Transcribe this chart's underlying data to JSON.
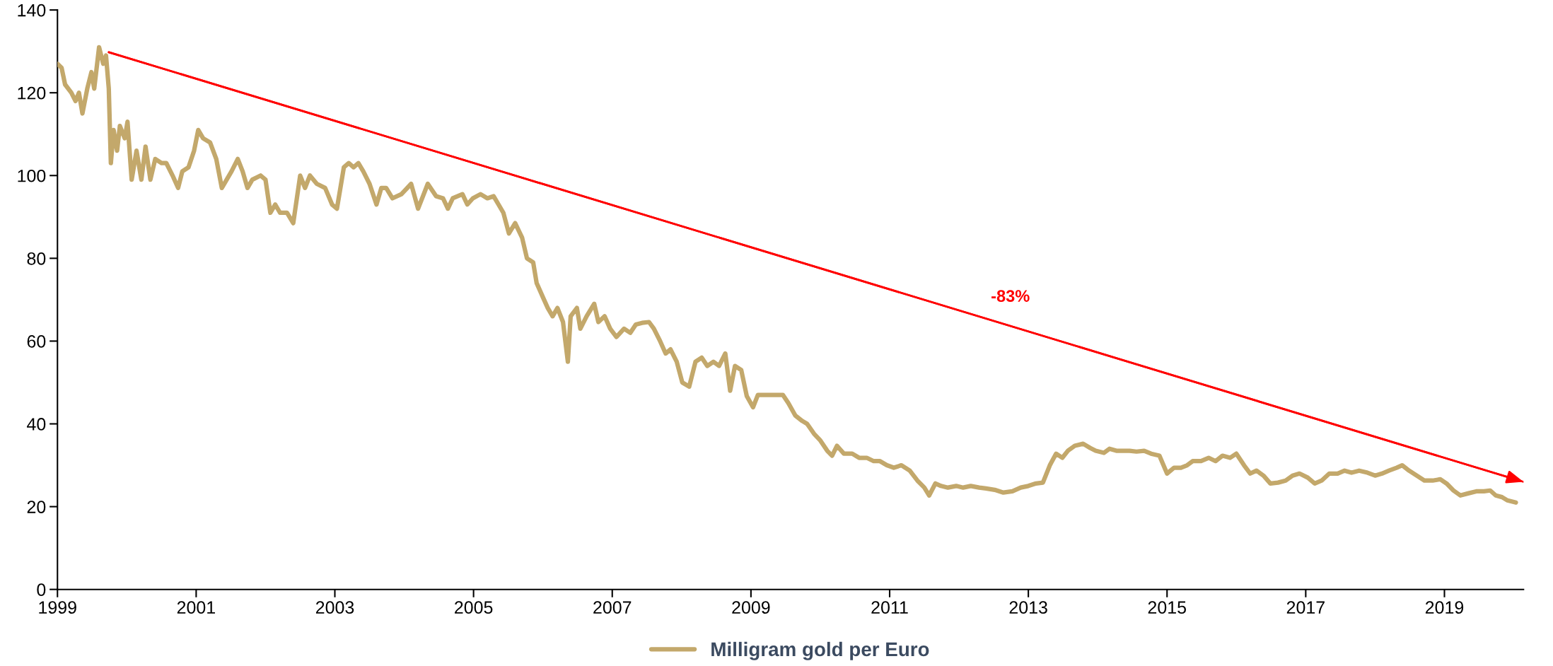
{
  "chart_data": {
    "type": "line",
    "xlim": [
      1999,
      2020.14
    ],
    "xticks": [
      1999,
      2001,
      2003,
      2005,
      2007,
      2009,
      2011,
      2013,
      2015,
      2017,
      2019
    ],
    "ylim": [
      0,
      140
    ],
    "yticks": [
      0,
      20,
      40,
      60,
      80,
      100,
      120,
      140
    ],
    "grid": false,
    "legend": "bottom",
    "line_style": "solid",
    "marker": "none",
    "annotations": [
      "-83%"
    ],
    "series": [
      {
        "name": "Milligram gold per Euro",
        "color": "#c3a86b",
        "x": [
          1999.0,
          1999.06,
          1999.11,
          1999.2,
          1999.26,
          1999.31,
          1999.36,
          1999.43,
          1999.49,
          1999.53,
          1999.6,
          1999.66,
          1999.7,
          1999.74,
          1999.77,
          1999.81,
          1999.86,
          1999.9,
          1999.97,
          2000.01,
          2000.07,
          2000.14,
          2000.21,
          2000.27,
          2000.34,
          2000.41,
          2000.5,
          2000.57,
          2000.66,
          2000.74,
          2000.8,
          2000.89,
          2000.97,
          2001.03,
          2001.1,
          2001.2,
          2001.29,
          2001.37,
          2001.44,
          2001.51,
          2001.6,
          2001.67,
          2001.74,
          2001.81,
          2001.93,
          2002.0,
          2002.07,
          2002.14,
          2002.21,
          2002.31,
          2002.4,
          2002.5,
          2002.57,
          2002.64,
          2002.74,
          2002.86,
          2002.96,
          2003.03,
          2003.13,
          2003.2,
          2003.27,
          2003.34,
          2003.41,
          2003.5,
          2003.6,
          2003.67,
          2003.74,
          2003.83,
          2003.96,
          2004.1,
          2004.2,
          2004.27,
          2004.34,
          2004.46,
          2004.56,
          2004.63,
          2004.7,
          2004.84,
          2004.91,
          2004.99,
          2005.1,
          2005.2,
          2005.29,
          2005.36,
          2005.43,
          2005.51,
          2005.6,
          2005.7,
          2005.77,
          2005.86,
          2005.91,
          2006.0,
          2006.07,
          2006.14,
          2006.21,
          2006.29,
          2006.36,
          2006.4,
          2006.49,
          2006.54,
          2006.63,
          2006.74,
          2006.8,
          2006.89,
          2006.97,
          2007.06,
          2007.17,
          2007.26,
          2007.34,
          2007.43,
          2007.53,
          2007.6,
          2007.69,
          2007.77,
          2007.84,
          2007.93,
          2008.01,
          2008.11,
          2008.2,
          2008.29,
          2008.37,
          2008.46,
          2008.54,
          2008.63,
          2008.7,
          2008.77,
          2008.86,
          2008.94,
          2009.03,
          2009.1,
          2009.19,
          2009.27,
          2009.36,
          2009.46,
          2009.54,
          2009.64,
          2009.74,
          2009.81,
          2009.91,
          2010.0,
          2010.1,
          2010.17,
          2010.24,
          2010.34,
          2010.46,
          2010.56,
          2010.67,
          2010.77,
          2010.86,
          2010.96,
          2011.06,
          2011.17,
          2011.29,
          2011.4,
          2011.5,
          2011.57,
          2011.66,
          2011.74,
          2011.84,
          2011.96,
          2012.06,
          2012.17,
          2012.29,
          2012.39,
          2012.53,
          2012.64,
          2012.77,
          2012.89,
          2013.0,
          2013.11,
          2013.21,
          2013.31,
          2013.4,
          2013.49,
          2013.57,
          2013.67,
          2013.79,
          2013.89,
          2013.97,
          2014.09,
          2014.17,
          2014.27,
          2014.37,
          2014.46,
          2014.56,
          2014.67,
          2014.77,
          2014.89,
          2015.0,
          2015.1,
          2015.2,
          2015.29,
          2015.37,
          2015.49,
          2015.6,
          2015.7,
          2015.8,
          2015.91,
          2016.0,
          2016.11,
          2016.2,
          2016.29,
          2016.39,
          2016.49,
          2016.6,
          2016.71,
          2016.81,
          2016.91,
          2017.03,
          2017.13,
          2017.23,
          2017.34,
          2017.46,
          2017.56,
          2017.66,
          2017.77,
          2017.89,
          2018.0,
          2018.1,
          2018.2,
          2018.31,
          2018.39,
          2018.49,
          2018.6,
          2018.71,
          2018.83,
          2018.94,
          2019.03,
          2019.13,
          2019.23,
          2019.34,
          2019.46,
          2019.57,
          2019.66,
          2019.74,
          2019.83,
          2019.91,
          2020.03
        ],
        "values": [
          127,
          126,
          122,
          120,
          118,
          120,
          115,
          121,
          125,
          121,
          131,
          127,
          129,
          121,
          103,
          111,
          106,
          112,
          109,
          113,
          99,
          106,
          99,
          107,
          99,
          104,
          103,
          103,
          100,
          97,
          101,
          102,
          106,
          111,
          109,
          108,
          104,
          97,
          99,
          101,
          104,
          101,
          97,
          99,
          100,
          99,
          91,
          93,
          91,
          91,
          88.5,
          100,
          97,
          100,
          98,
          97,
          93,
          92,
          102,
          103,
          102,
          103,
          101,
          98,
          93,
          97,
          97,
          94.5,
          95.5,
          98,
          92,
          95,
          98,
          95,
          94.5,
          92,
          94.5,
          95.5,
          93,
          94.5,
          95.5,
          94.5,
          95,
          93,
          91,
          86,
          88.5,
          85,
          80,
          79,
          74,
          70.6,
          68,
          66,
          68,
          64.6,
          55,
          66,
          68,
          63,
          66,
          69,
          64.6,
          66,
          63,
          61,
          63,
          62,
          64,
          64.4,
          64.6,
          63,
          60,
          57,
          58,
          55,
          50,
          49,
          55,
          56,
          54,
          55,
          54,
          57,
          48,
          54,
          53,
          46.7,
          44,
          47,
          47,
          47,
          47,
          47,
          45,
          42,
          40.7,
          40,
          37.6,
          36,
          33.5,
          32.3,
          34.7,
          32.8,
          32.8,
          31.8,
          31.8,
          31,
          31,
          30,
          29.4,
          30,
          28.7,
          26.3,
          24.6,
          22.7,
          25.6,
          25,
          24.6,
          25,
          24.6,
          25,
          24.6,
          24.4,
          24,
          23.4,
          23.7,
          24.6,
          25,
          25.6,
          25.8,
          30,
          32.8,
          31.8,
          33.5,
          34.7,
          35.2,
          34.2,
          33.5,
          33,
          34,
          33.5,
          33.5,
          33.5,
          33.3,
          33.5,
          32.8,
          32.3,
          28,
          29.4,
          29.4,
          30,
          31,
          31,
          31.8,
          31,
          32.3,
          31.8,
          32.8,
          30,
          28,
          28.7,
          27.5,
          25.6,
          25.8,
          26.3,
          27.5,
          28,
          27,
          25.6,
          26.3,
          28,
          28,
          28.7,
          28.2,
          28.7,
          28.2,
          27.5,
          28,
          28.7,
          29.4,
          30,
          28.7,
          27.5,
          26.3,
          26.3,
          26.6,
          25.6,
          23.9,
          22.7,
          23.2,
          23.7,
          23.7,
          23.9,
          22.7,
          22.3,
          21.5,
          21
        ]
      },
      {
        "type": "line",
        "color": "#ff0000",
        "x": [
          1999.74,
          2020.14
        ],
        "values": [
          129.8,
          26.0
        ]
      }
    ]
  }
}
